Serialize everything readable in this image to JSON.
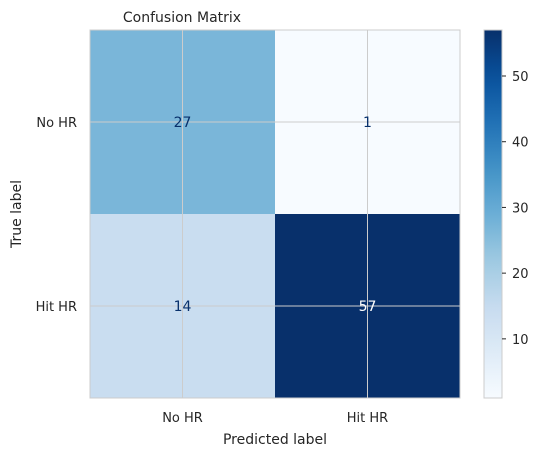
{
  "chart_data": {
    "type": "heatmap",
    "title": "Confusion Matrix",
    "xlabel": "Predicted label",
    "ylabel": "True label",
    "x_categories": [
      "No HR",
      "Hit HR"
    ],
    "y_categories": [
      "No HR",
      "Hit HR"
    ],
    "values": [
      [
        27,
        1
      ],
      [
        14,
        57
      ]
    ],
    "colormap": "Blues",
    "colorbar": {
      "ticks": [
        10,
        20,
        30,
        40,
        50
      ],
      "range": [
        1,
        57
      ]
    },
    "grid": true,
    "colors": {
      "low": "#f7fbff",
      "high": "#08306b",
      "text_dark": "#08306b",
      "text_light": "#ffffff"
    }
  }
}
